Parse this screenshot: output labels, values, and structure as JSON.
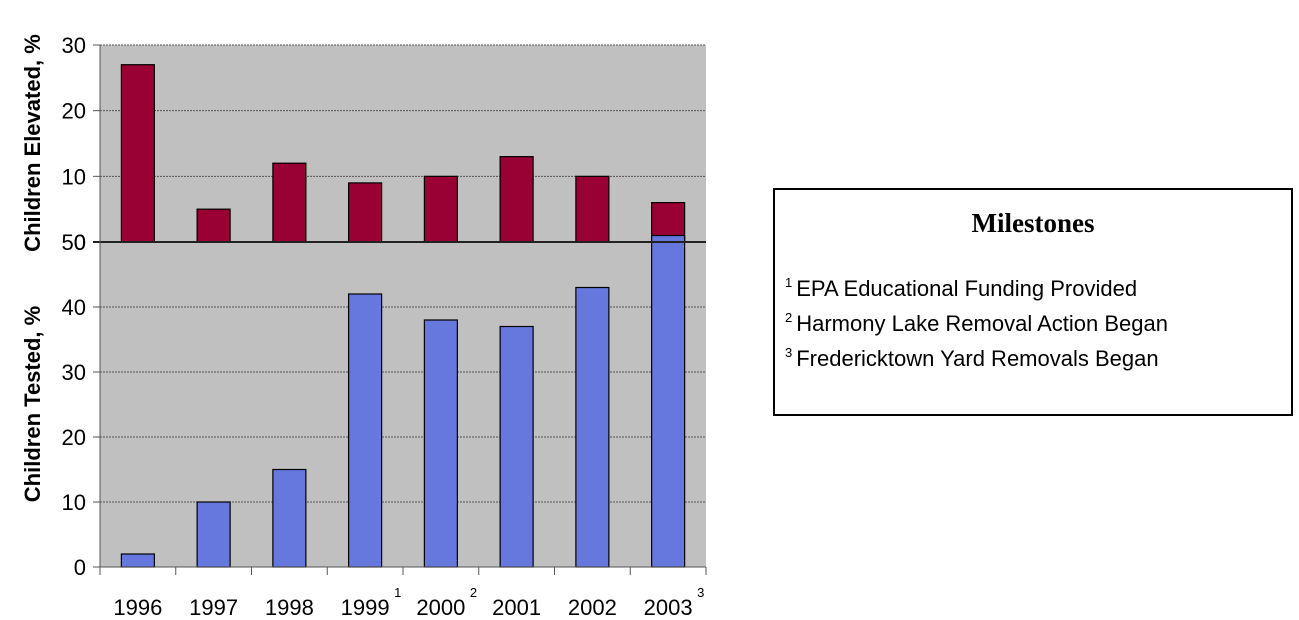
{
  "chart_data": [
    {
      "type": "bar",
      "ylabel": "Children Elevated, %",
      "ylim": [
        0,
        30
      ],
      "yticks": [
        0,
        10,
        20,
        30
      ],
      "grid": true,
      "color": "#990033",
      "categories": [
        "1996",
        "1997",
        "1998",
        "1999",
        "2000",
        "2001",
        "2002",
        "2003"
      ],
      "values": [
        27,
        5,
        12,
        9,
        10,
        13,
        10,
        6
      ]
    },
    {
      "type": "bar",
      "ylabel": "Children Tested, %",
      "ylim": [
        0,
        50
      ],
      "yticks": [
        0,
        10,
        20,
        30,
        40,
        50
      ],
      "grid": true,
      "color": "#6677dd",
      "categories": [
        "1996",
        "1997",
        "1998",
        "1999",
        "2000",
        "2001",
        "2002",
        "2003"
      ],
      "values": [
        2,
        10,
        15,
        42,
        38,
        37,
        43,
        51
      ]
    }
  ],
  "x_labels": [
    {
      "label": "1996",
      "sup": ""
    },
    {
      "label": "1997",
      "sup": ""
    },
    {
      "label": "1998",
      "sup": ""
    },
    {
      "label": "1999",
      "sup": "1"
    },
    {
      "label": "2000",
      "sup": "2"
    },
    {
      "label": "2001",
      "sup": ""
    },
    {
      "label": "2002",
      "sup": ""
    },
    {
      "label": "2003",
      "sup": "3"
    }
  ],
  "milestones": {
    "title": "Milestones",
    "items": [
      {
        "num": "1",
        "text": "EPA Educational Funding Provided"
      },
      {
        "num": "2",
        "text": "Harmony Lake Removal Action Began"
      },
      {
        "num": "3",
        "text": "Fredericktown Yard Removals Began"
      }
    ]
  },
  "colors": {
    "plot_background": "#c0c0c0",
    "elevated_bar": "#990033",
    "tested_bar": "#6677dd"
  }
}
